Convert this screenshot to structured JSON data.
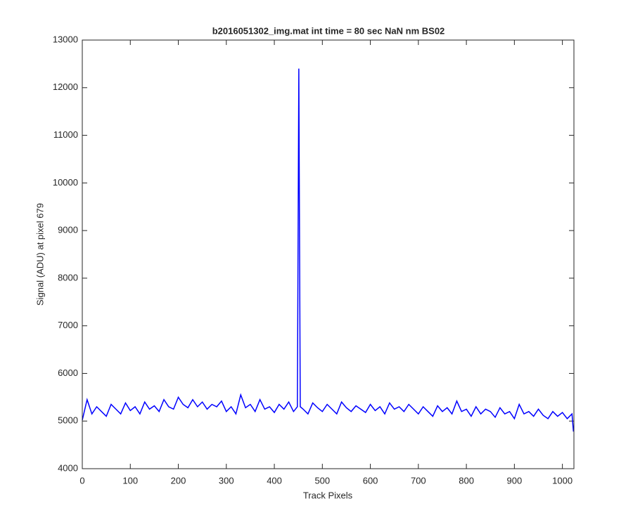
{
  "chart_data": {
    "type": "line",
    "title": "b2016051302_img.mat int time = 80 sec  NaN nm BS02",
    "x_label": "Track Pixels",
    "y_label": "Signal (ADU) at pixel 679",
    "x": [
      0,
      10,
      20,
      30,
      40,
      50,
      60,
      70,
      80,
      90,
      100,
      110,
      120,
      130,
      140,
      150,
      160,
      170,
      180,
      190,
      200,
      210,
      220,
      230,
      240,
      250,
      260,
      270,
      280,
      290,
      300,
      310,
      320,
      330,
      340,
      350,
      360,
      370,
      380,
      390,
      400,
      410,
      420,
      430,
      440,
      448,
      451,
      454,
      460,
      470,
      480,
      490,
      500,
      510,
      520,
      530,
      540,
      550,
      560,
      570,
      580,
      590,
      600,
      610,
      620,
      630,
      640,
      650,
      660,
      670,
      680,
      690,
      700,
      710,
      720,
      730,
      740,
      750,
      760,
      770,
      780,
      790,
      800,
      810,
      820,
      830,
      840,
      850,
      860,
      870,
      880,
      890,
      900,
      910,
      920,
      930,
      940,
      950,
      960,
      970,
      980,
      990,
      1000,
      1010,
      1020,
      1023
    ],
    "series": [
      {
        "name": "signal",
        "color": "#0000ff",
        "values": [
          5020,
          5450,
          5150,
          5300,
          5200,
          5100,
          5350,
          5250,
          5150,
          5380,
          5220,
          5300,
          5150,
          5400,
          5250,
          5320,
          5200,
          5450,
          5300,
          5250,
          5500,
          5350,
          5280,
          5450,
          5300,
          5400,
          5250,
          5350,
          5300,
          5420,
          5200,
          5300,
          5150,
          5550,
          5280,
          5350,
          5200,
          5450,
          5250,
          5300,
          5180,
          5350,
          5250,
          5400,
          5200,
          5300,
          12400,
          5300,
          5250,
          5150,
          5380,
          5280,
          5200,
          5350,
          5250,
          5150,
          5400,
          5280,
          5200,
          5320,
          5250,
          5180,
          5350,
          5220,
          5300,
          5150,
          5380,
          5250,
          5300,
          5200,
          5350,
          5250,
          5150,
          5300,
          5200,
          5100,
          5320,
          5200,
          5280,
          5150,
          5420,
          5200,
          5250,
          5100,
          5300,
          5150,
          5250,
          5200,
          5080,
          5280,
          5150,
          5200,
          5050,
          5350,
          5150,
          5200,
          5100,
          5250,
          5120,
          5050,
          5200,
          5100,
          5180,
          5050,
          5150,
          4780
        ]
      }
    ],
    "xlim": [
      0,
      1024
    ],
    "ylim": [
      4000,
      13000
    ],
    "xticks": [
      0,
      100,
      200,
      300,
      400,
      500,
      600,
      700,
      800,
      900,
      1000
    ],
    "yticks": [
      4000,
      5000,
      6000,
      7000,
      8000,
      9000,
      10000,
      11000,
      12000,
      13000
    ]
  }
}
